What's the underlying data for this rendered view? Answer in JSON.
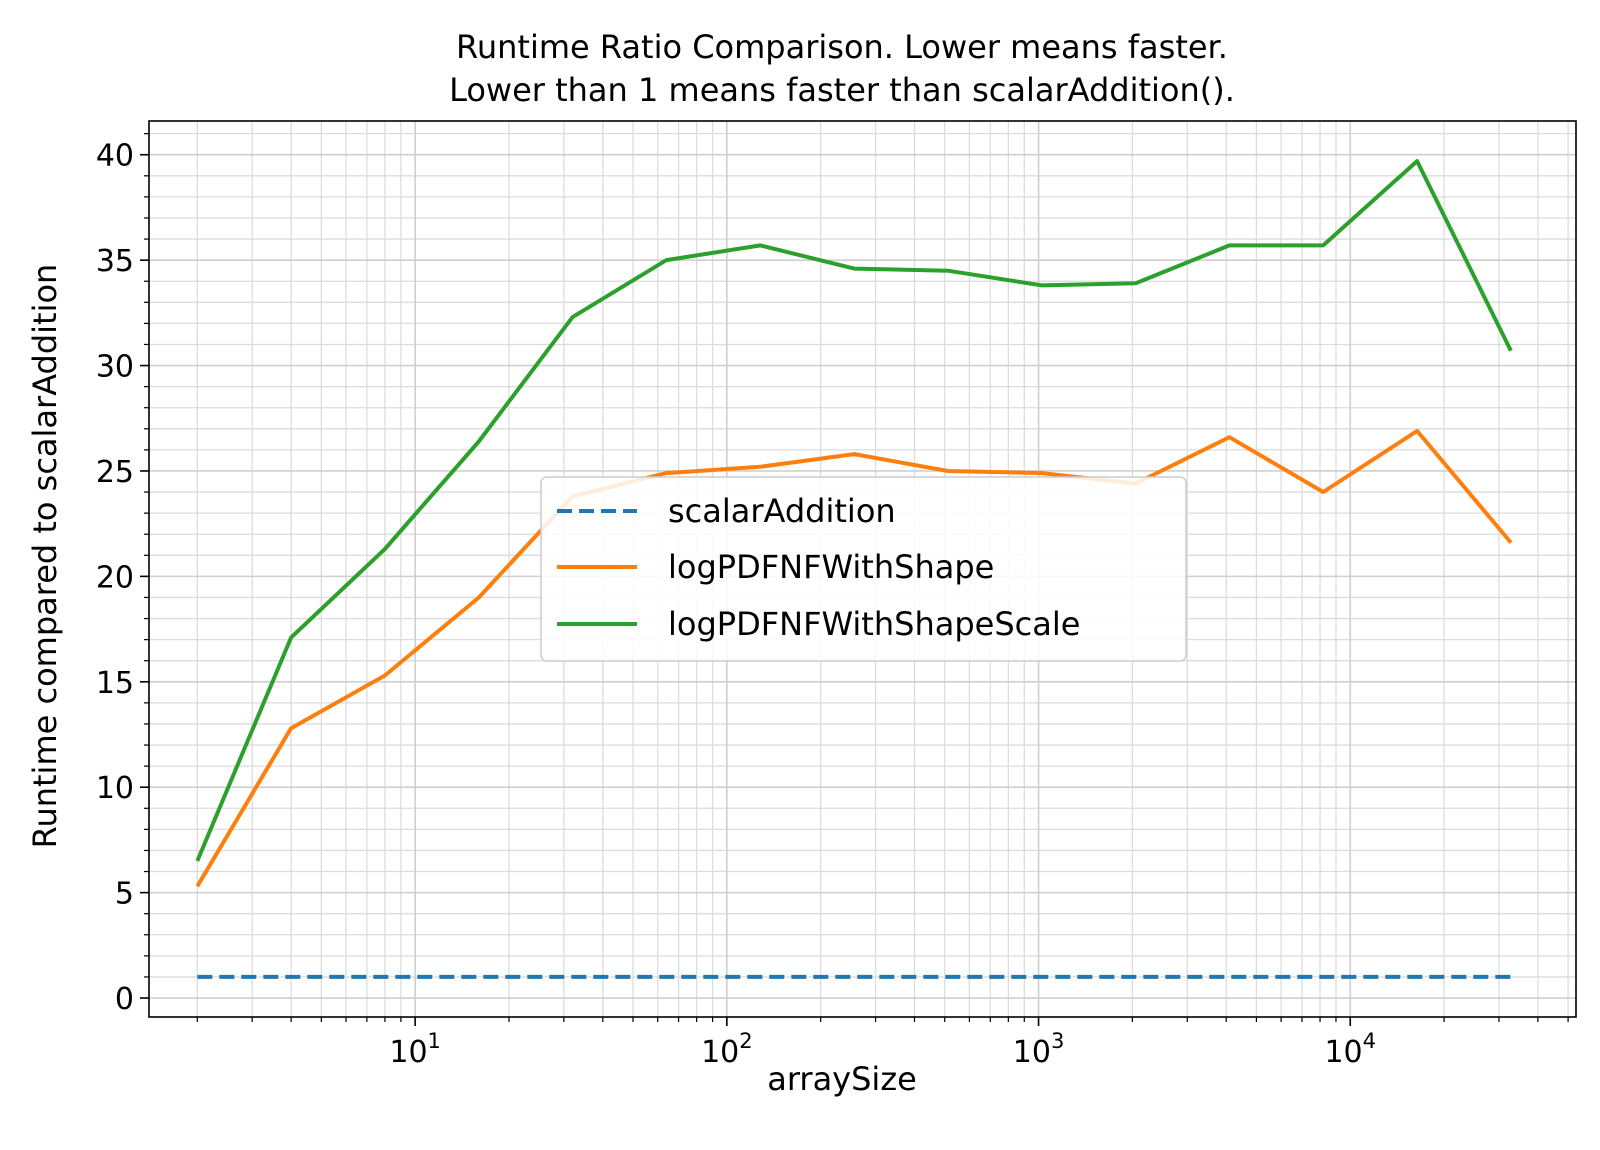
{
  "chart_data": {
    "type": "line",
    "title": [
      "Runtime Ratio Comparison. Lower means faster.",
      "Lower than 1 means faster than scalarAddition()."
    ],
    "xlabel": "arraySize",
    "ylabel": "Runtime compared to scalarAddition",
    "xscale": "log",
    "xlim": [
      1.4,
      53000
    ],
    "ylim": [
      -0.9,
      41.6
    ],
    "x_ticks": [
      {
        "value": 10,
        "base": "10",
        "exp": "1"
      },
      {
        "value": 100,
        "base": "10",
        "exp": "2"
      },
      {
        "value": 1000,
        "base": "10",
        "exp": "3"
      },
      {
        "value": 10000,
        "base": "10",
        "exp": "4"
      }
    ],
    "y_ticks": [
      0,
      5,
      10,
      15,
      20,
      25,
      30,
      35,
      40
    ],
    "grid": true,
    "legend_position": "center",
    "x": [
      2,
      4,
      8,
      16,
      32,
      64,
      128,
      256,
      512,
      1024,
      2048,
      4096,
      8192,
      16384,
      32768
    ],
    "series": [
      {
        "name": "scalarAddition",
        "color": "#1f77b4",
        "dashed": true,
        "values": [
          1,
          1,
          1,
          1,
          1,
          1,
          1,
          1,
          1,
          1,
          1,
          1,
          1,
          1,
          1
        ]
      },
      {
        "name": "logPDFNFWithShape",
        "color": "#ff7f0e",
        "dashed": false,
        "values": [
          5.3,
          12.8,
          15.3,
          19.0,
          23.8,
          24.9,
          25.2,
          25.8,
          25.0,
          24.9,
          24.4,
          26.6,
          24.0,
          26.9,
          21.6
        ]
      },
      {
        "name": "logPDFNFWithShapeScale",
        "color": "#2ca02c",
        "dashed": false,
        "values": [
          6.5,
          17.1,
          21.3,
          26.4,
          32.3,
          35.0,
          35.7,
          34.6,
          34.5,
          33.8,
          33.9,
          35.7,
          35.7,
          39.7,
          30.7
        ]
      }
    ]
  }
}
